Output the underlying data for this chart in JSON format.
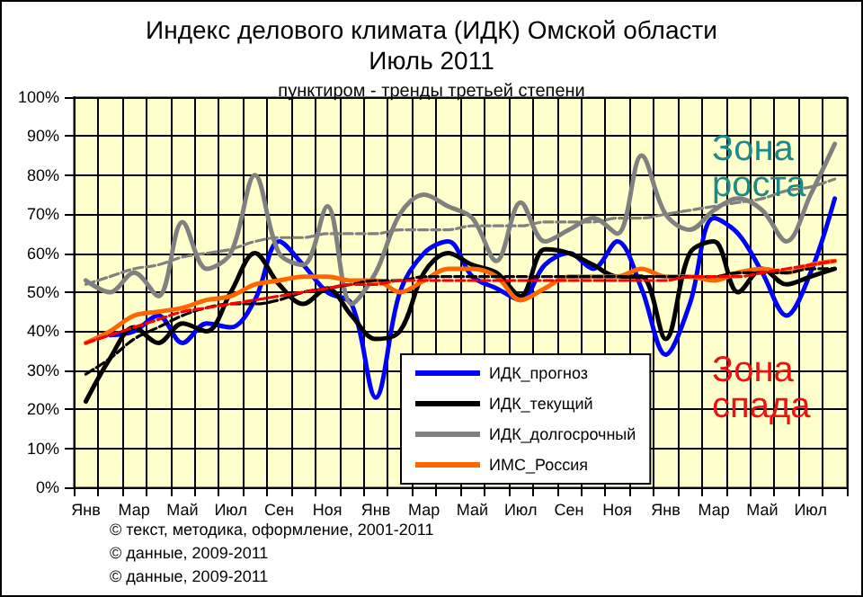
{
  "chart_data": {
    "type": "line",
    "title": "Индекс делового климата (ИДК) Омской области\nИюль 2011",
    "subtitle": "пунктиром - тренды третьей степени",
    "categories": [
      "Янв",
      null,
      "Мар",
      null,
      "Май",
      null,
      "Июл",
      null,
      "Сен",
      null,
      "Ноя",
      null,
      "Янв",
      null,
      "Мар",
      null,
      "Май",
      null,
      "Июл",
      null,
      "Сен",
      null,
      "Ноя",
      null,
      "Янв",
      null,
      "Мар",
      null,
      "Май",
      null,
      "Июл",
      null
    ],
    "series": [
      {
        "name": "ИДК_прогноз",
        "color": "#0000ff",
        "values": [
          null,
          39,
          40,
          44,
          37,
          42,
          41,
          48,
          63,
          57,
          50,
          47,
          23,
          50,
          60,
          63,
          54,
          51,
          48,
          57,
          60,
          56,
          63,
          51,
          34,
          47,
          69,
          65,
          55,
          44,
          55,
          74
        ]
      },
      {
        "name": "ИДК_текущий",
        "color": "#000000",
        "values": [
          22,
          33,
          41,
          37,
          42,
          40,
          50,
          60,
          52,
          47,
          51,
          44,
          38,
          40,
          55,
          60,
          57,
          55,
          49,
          61,
          60,
          57,
          54,
          54,
          38,
          60,
          63,
          50,
          56,
          52,
          54,
          56
        ]
      },
      {
        "name": "ИДК_долгосрочный",
        "color": "#808080",
        "values": [
          53,
          50,
          55,
          49,
          68,
          56,
          60,
          80,
          60,
          57,
          72,
          47,
          55,
          70,
          75,
          72,
          69,
          58,
          73,
          63,
          66,
          69,
          65,
          85,
          70,
          66,
          71,
          74,
          71,
          63,
          75,
          88
        ]
      },
      {
        "name": "ИМС_Россия",
        "color": "#ff6600",
        "values": [
          37,
          40,
          44,
          45,
          46,
          48,
          49,
          52,
          53,
          54,
          54,
          53,
          53,
          50,
          53,
          56,
          56,
          54,
          48,
          51,
          54,
          54,
          54,
          56,
          54,
          54,
          53,
          55,
          56,
          55,
          57,
          58
        ]
      },
      {
        "color": "#000000",
        "line_style": "dashed",
        "values": [
          29,
          33,
          38,
          41,
          44,
          46,
          47,
          47,
          48,
          50,
          51,
          52,
          53,
          53,
          54,
          54,
          54,
          54,
          54,
          54,
          54,
          54,
          54,
          54,
          54,
          54,
          54,
          55,
          55,
          55,
          56,
          56
        ]
      },
      {
        "color": "#808080",
        "line_style": "dashed",
        "values": [
          52,
          54,
          56,
          57,
          59,
          60,
          61,
          63,
          64,
          64,
          65,
          65,
          65,
          66,
          66,
          66,
          67,
          67,
          67,
          68,
          68,
          68,
          69,
          69,
          70,
          71,
          72,
          73,
          74,
          76,
          77,
          79
        ]
      },
      {
        "color": "#ff0000",
        "line_style": "dashed",
        "values": [
          37,
          39,
          41,
          43,
          45,
          46,
          47,
          48,
          49,
          50,
          51,
          52,
          52,
          53,
          53,
          53,
          53,
          53,
          53,
          53,
          53,
          53,
          53,
          53,
          53,
          54,
          54,
          54,
          55,
          56,
          57,
          58
        ]
      }
    ],
    "ylim": [
      0,
      100
    ],
    "yticks": [
      {
        "value": 0,
        "label": "0%"
      },
      {
        "value": 10,
        "label": "10%"
      },
      {
        "value": 20,
        "label": "20%"
      },
      {
        "value": 30,
        "label": "30%"
      },
      {
        "value": 40,
        "label": "40%"
      },
      {
        "value": 50,
        "label": "50%"
      },
      {
        "value": 60,
        "label": "60%"
      },
      {
        "value": 70,
        "label": "70%"
      },
      {
        "value": 80,
        "label": "80%"
      },
      {
        "value": 90,
        "label": "90%"
      },
      {
        "value": 100,
        "label": "100%"
      }
    ],
    "grid": true,
    "legend": "bottom",
    "marker": "none",
    "line_style": "solid",
    "annotations": [
      "Зона\nроста",
      "Зона\nспада",
      "© текст, методика, оформление, 2001-2011",
      "© данные, 2009-2011",
      "© данные, 2009-2011"
    ]
  }
}
